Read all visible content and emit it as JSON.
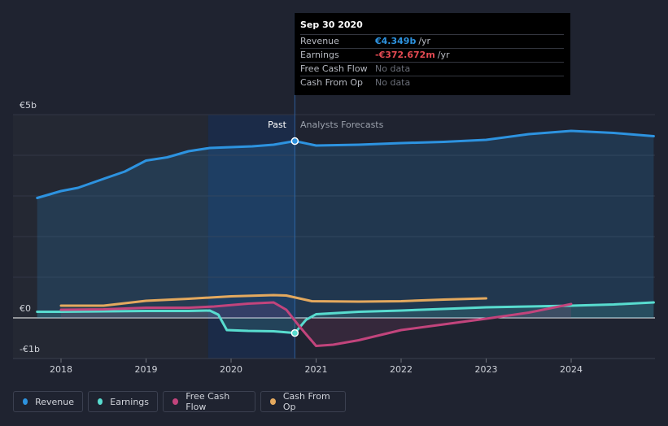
{
  "colors": {
    "revenue": "#2d93e0",
    "earnings": "#58dccf",
    "free_cash_flow": "#c2447c",
    "cash_from_op": "#e4a95e",
    "negative_value": "#e24a52",
    "positive_value": "#2d93e0"
  },
  "tooltip": {
    "title": "Sep 30 2020",
    "rows": [
      {
        "label": "Revenue",
        "value": "€4.349b",
        "unit": "/yr"
      },
      {
        "label": "Earnings",
        "value": "-€372.672m",
        "unit": "/yr"
      },
      {
        "label": "Free Cash Flow",
        "value": "No data",
        "unit": ""
      },
      {
        "label": "Cash From Op",
        "value": "No data",
        "unit": ""
      }
    ]
  },
  "chart_data": {
    "type": "line",
    "title": "",
    "past_label": "Past",
    "forecast_label": "Analysts Forecasts",
    "y_axis_labels": [
      "€5b",
      "€0",
      "-€1b"
    ],
    "ylim": [
      -1,
      5
    ],
    "xlim": [
      2017.72,
      2024.97
    ],
    "divider_x": 2020.75,
    "highlight_range": [
      2019.73,
      2020.75
    ],
    "x_ticks": [
      "2018",
      "2019",
      "2020",
      "2021",
      "2022",
      "2023",
      "2024"
    ],
    "x_tick_values": [
      2018,
      2019,
      2020,
      2021,
      2022,
      2023,
      2024
    ],
    "series": [
      {
        "name": "Revenue",
        "key": "revenue",
        "fill": true,
        "points": [
          [
            2017.72,
            2.95
          ],
          [
            2018,
            3.12
          ],
          [
            2018.2,
            3.2
          ],
          [
            2018.5,
            3.42
          ],
          [
            2018.75,
            3.6
          ],
          [
            2019,
            3.87
          ],
          [
            2019.25,
            3.95
          ],
          [
            2019.5,
            4.1
          ],
          [
            2019.75,
            4.18
          ],
          [
            2020,
            4.2
          ],
          [
            2020.25,
            4.22
          ],
          [
            2020.5,
            4.26
          ],
          [
            2020.75,
            4.349
          ],
          [
            2021,
            4.24
          ],
          [
            2021.5,
            4.26
          ],
          [
            2022,
            4.3
          ],
          [
            2022.5,
            4.33
          ],
          [
            2023,
            4.38
          ],
          [
            2023.5,
            4.52
          ],
          [
            2024,
            4.6
          ],
          [
            2024.5,
            4.55
          ],
          [
            2024.97,
            4.47
          ]
        ],
        "markers": [
          [
            2020.75,
            4.349
          ]
        ]
      },
      {
        "name": "Earnings",
        "key": "earnings",
        "fill": true,
        "points": [
          [
            2017.72,
            0.15
          ],
          [
            2018,
            0.15
          ],
          [
            2018.5,
            0.16
          ],
          [
            2019,
            0.17
          ],
          [
            2019.5,
            0.17
          ],
          [
            2019.75,
            0.18
          ],
          [
            2019.85,
            0.08
          ],
          [
            2019.95,
            -0.3
          ],
          [
            2020.2,
            -0.32
          ],
          [
            2020.5,
            -0.33
          ],
          [
            2020.75,
            -0.373
          ],
          [
            2020.88,
            -0.05
          ],
          [
            2021,
            0.09
          ],
          [
            2021.5,
            0.15
          ],
          [
            2022,
            0.18
          ],
          [
            2022.5,
            0.22
          ],
          [
            2023,
            0.26
          ],
          [
            2023.5,
            0.28
          ],
          [
            2024,
            0.3
          ],
          [
            2024.5,
            0.33
          ],
          [
            2024.97,
            0.38
          ]
        ],
        "markers": [
          [
            2020.75,
            -0.373
          ]
        ]
      },
      {
        "name": "Free Cash Flow",
        "key": "free_cash_flow",
        "fill": true,
        "points": [
          [
            2018,
            0.2
          ],
          [
            2018.5,
            0.21
          ],
          [
            2019,
            0.25
          ],
          [
            2019.5,
            0.25
          ],
          [
            2019.8,
            0.28
          ],
          [
            2020.2,
            0.35
          ],
          [
            2020.5,
            0.38
          ],
          [
            2020.65,
            0.2
          ],
          [
            2020.8,
            -0.2
          ],
          [
            2021,
            -0.69
          ],
          [
            2021.2,
            -0.66
          ],
          [
            2021.5,
            -0.55
          ],
          [
            2022,
            -0.3
          ],
          [
            2022.5,
            -0.16
          ],
          [
            2023,
            -0.02
          ],
          [
            2023.5,
            0.13
          ],
          [
            2024,
            0.34
          ]
        ],
        "markers": []
      },
      {
        "name": "Cash From Op",
        "key": "cash_from_op",
        "fill": false,
        "points": [
          [
            2018,
            0.3
          ],
          [
            2018.5,
            0.3
          ],
          [
            2019,
            0.42
          ],
          [
            2019.5,
            0.47
          ],
          [
            2020,
            0.53
          ],
          [
            2020.5,
            0.56
          ],
          [
            2020.65,
            0.55
          ],
          [
            2020.95,
            0.41
          ],
          [
            2021.5,
            0.4
          ],
          [
            2022,
            0.41
          ],
          [
            2022.5,
            0.45
          ],
          [
            2023,
            0.48
          ]
        ],
        "markers": []
      }
    ]
  },
  "legend": [
    {
      "label": "Revenue",
      "key": "revenue"
    },
    {
      "label": "Earnings",
      "key": "earnings"
    },
    {
      "label": "Free Cash Flow",
      "key": "free_cash_flow"
    },
    {
      "label": "Cash From Op",
      "key": "cash_from_op"
    }
  ]
}
